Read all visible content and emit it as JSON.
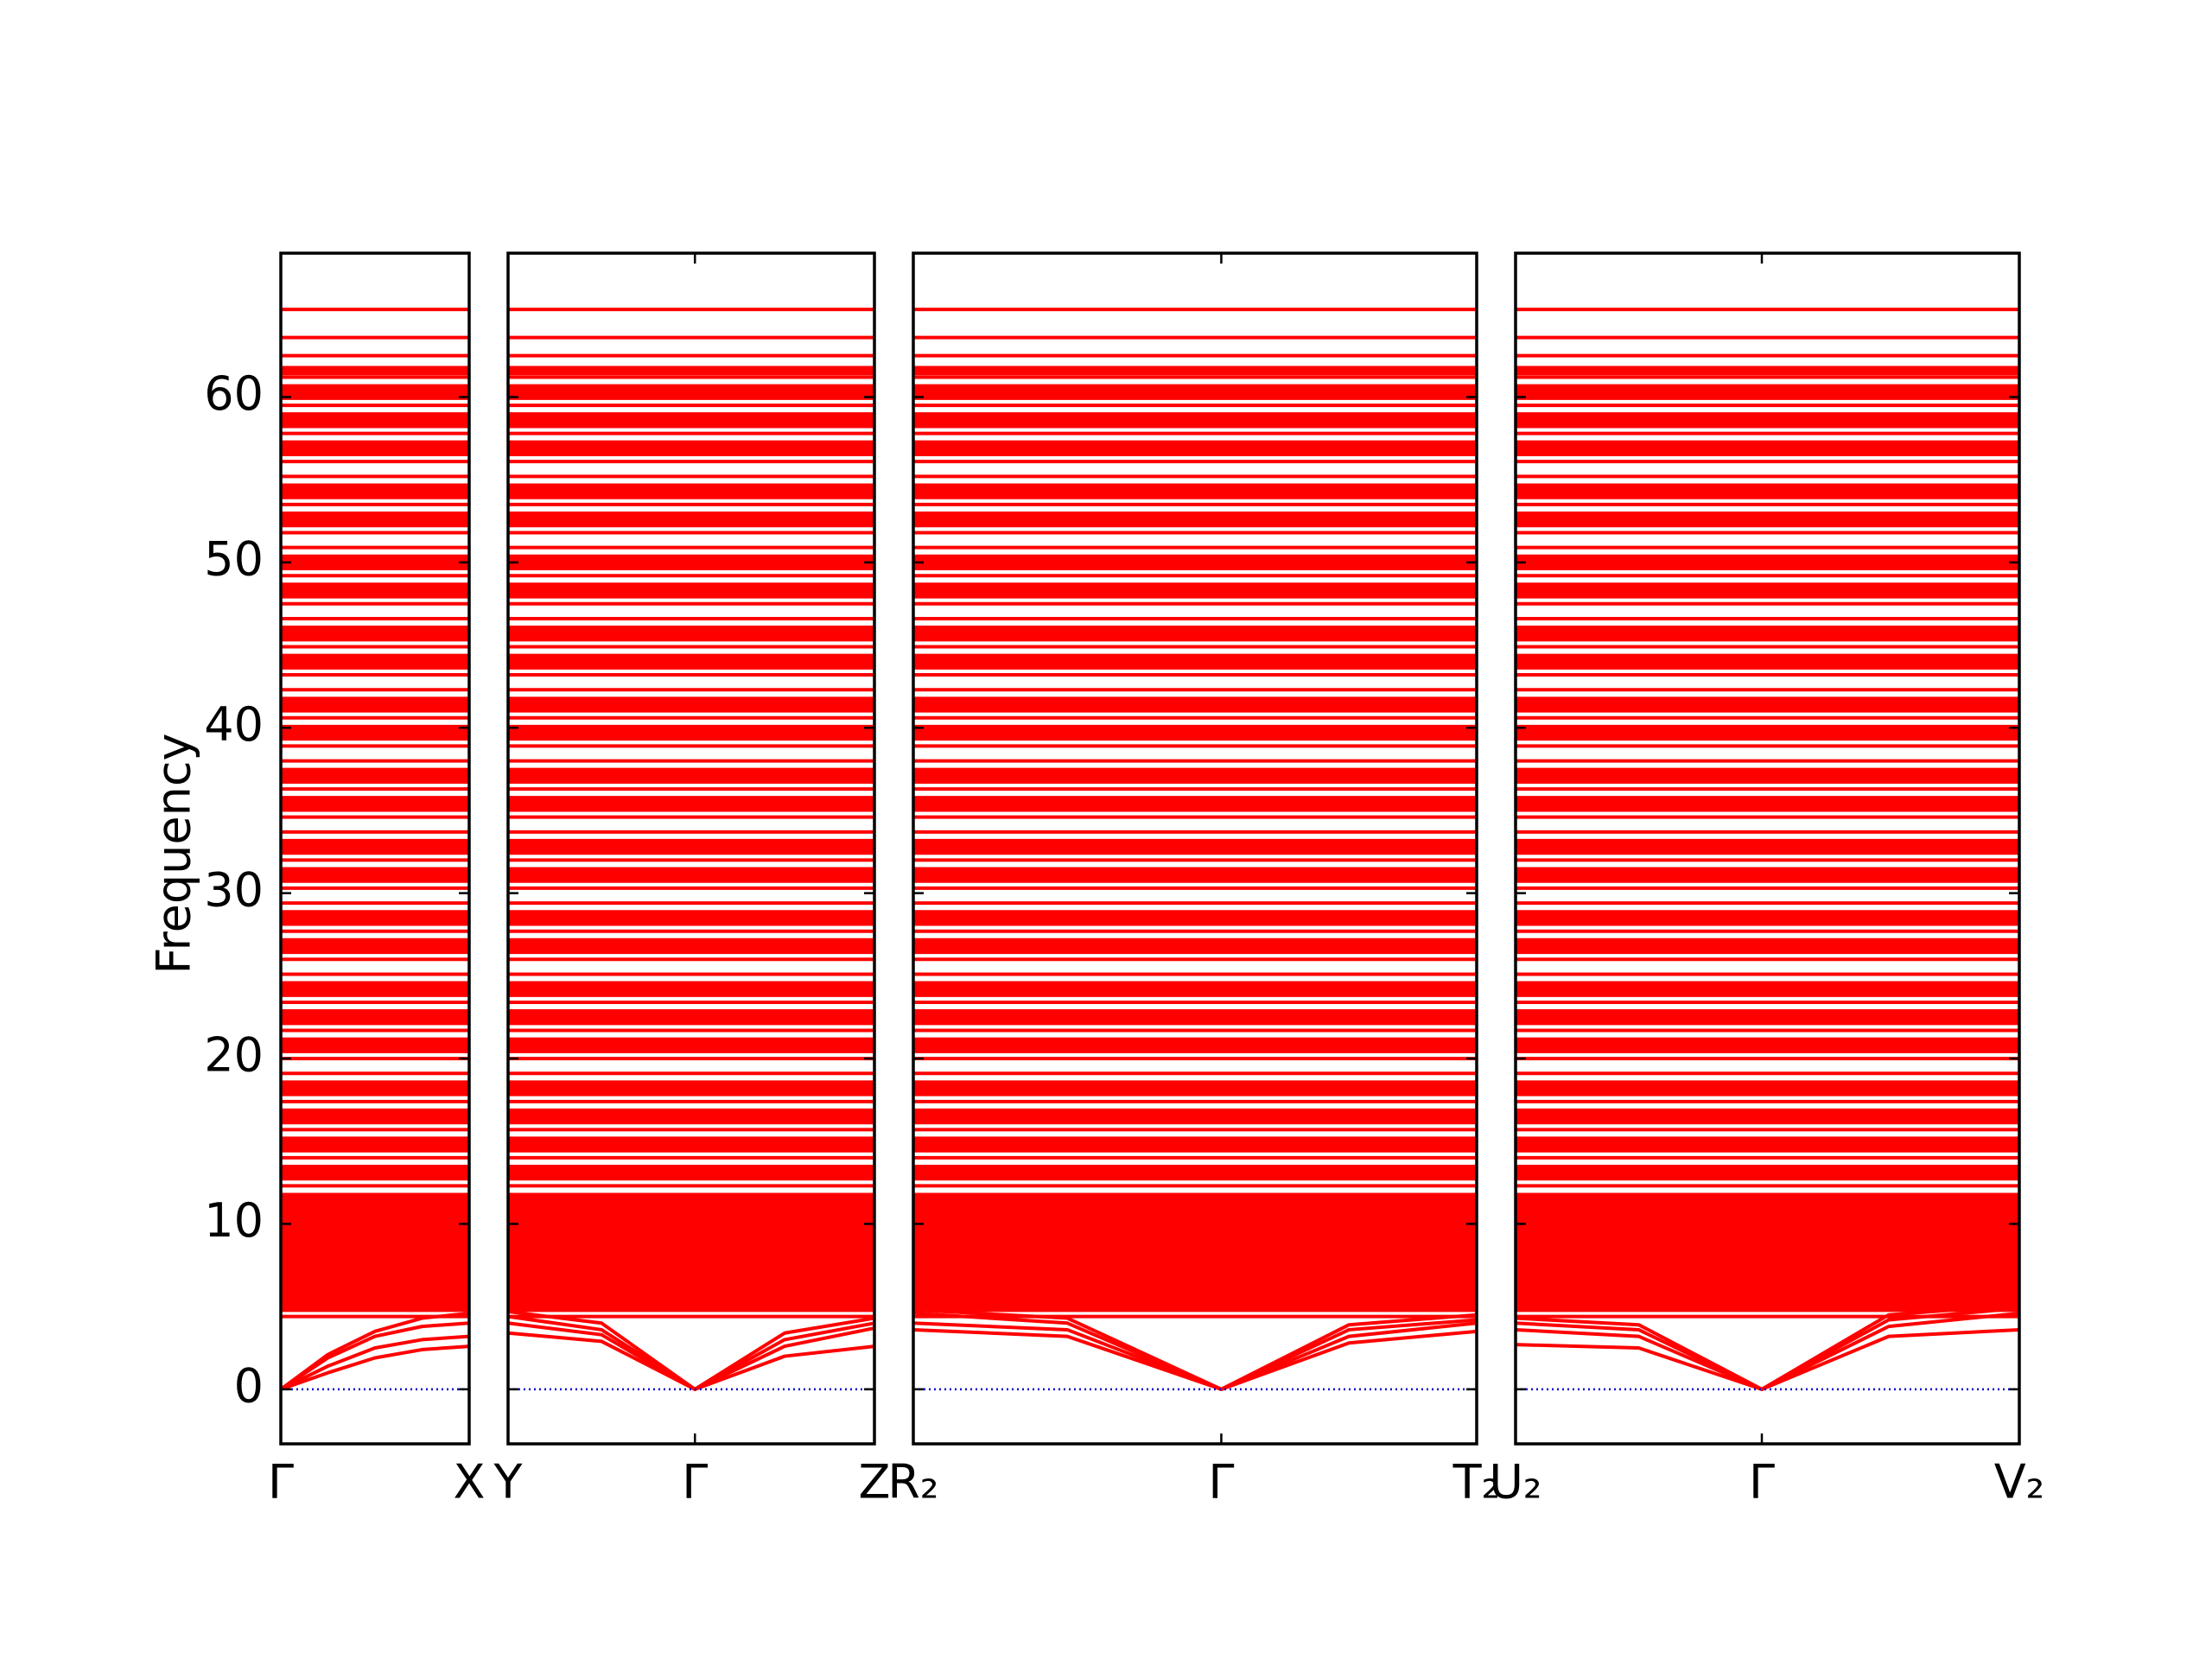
{
  "chart_data": {
    "type": "band_structure",
    "ylabel": "Frequency",
    "ylim": [
      -3.3,
      68.7
    ],
    "yticks": [
      0,
      10,
      20,
      30,
      40,
      50,
      60
    ],
    "color": "#ff0000",
    "zero_line": 0,
    "zero_color": "#0000cc",
    "flat_bands": [
      4.4,
      5.1,
      5.6,
      6.2,
      6.9,
      7.5,
      8.3,
      9.0,
      9.8,
      10.6,
      11.4,
      12.3,
      13.1,
      14.0,
      14.8,
      15.7,
      16.5,
      17.4,
      18.2,
      19.1,
      20.0,
      20.8,
      21.7,
      22.5,
      23.4,
      24.2,
      25.1,
      26.0,
      26.8,
      27.7,
      28.5,
      29.4,
      30.3,
      31.1,
      32.0,
      32.8,
      33.7,
      34.6,
      35.4,
      36.3,
      37.1,
      38.0,
      38.9,
      39.7,
      40.6,
      41.4,
      42.3,
      43.2,
      44.0,
      44.9,
      45.7,
      46.6,
      47.5,
      48.3,
      49.2,
      50.0,
      50.9,
      51.8,
      52.6,
      53.5,
      54.3,
      55.2,
      56.1,
      56.9,
      57.8,
      58.6,
      59.5,
      60.3,
      61.2,
      61.6,
      62.5,
      63.6,
      65.3
    ],
    "panels": [
      {
        "xlim": [
          0,
          0.5
        ],
        "xticks": [
          {
            "value": 0,
            "label": "Γ"
          },
          {
            "value": 0.5,
            "label": "X"
          }
        ],
        "x": [
          0,
          0.125,
          0.25,
          0.375,
          0.5
        ],
        "bands": [
          [
            0,
            1.0,
            1.9,
            2.4,
            2.6
          ],
          [
            0,
            1.4,
            2.5,
            3.0,
            3.2
          ],
          [
            0,
            1.9,
            3.2,
            3.8,
            4.0
          ],
          [
            0,
            2.1,
            3.5,
            4.3,
            4.6
          ]
        ]
      },
      {
        "xlim": [
          0,
          1.0
        ],
        "xticks": [
          {
            "value": 0,
            "label": "Y"
          },
          {
            "value": 0.51,
            "label": "Γ"
          },
          {
            "value": 1.0,
            "label": "Z"
          }
        ],
        "x": [
          0,
          0.255,
          0.51,
          0.755,
          1.0
        ],
        "bands": [
          [
            3.4,
            2.9,
            0,
            2.0,
            2.6
          ],
          [
            4.0,
            3.3,
            0,
            2.6,
            3.7
          ],
          [
            4.4,
            3.6,
            0,
            3.0,
            4.0
          ],
          [
            4.7,
            4.0,
            0,
            3.4,
            4.3
          ]
        ]
      },
      {
        "xlim": [
          0,
          1.5
        ],
        "xticks": [
          {
            "value": 0,
            "label": "R₂"
          },
          {
            "value": 0.82,
            "label": "Γ"
          },
          {
            "value": 1.5,
            "label": "T₂"
          }
        ],
        "x": [
          0,
          0.41,
          0.82,
          1.16,
          1.5
        ],
        "bands": [
          [
            3.6,
            3.2,
            0,
            2.8,
            3.5
          ],
          [
            4.0,
            3.6,
            0,
            3.2,
            4.0
          ],
          [
            4.6,
            4.0,
            0,
            3.6,
            4.2
          ],
          [
            4.8,
            4.3,
            0,
            3.9,
            4.5
          ]
        ]
      },
      {
        "xlim": [
          0,
          1.35
        ],
        "xticks": [
          {
            "value": 0,
            "label": "U₂"
          },
          {
            "value": 0.66,
            "label": "Γ"
          },
          {
            "value": 1.35,
            "label": "V₂"
          }
        ],
        "x": [
          0,
          0.33,
          0.66,
          1.0,
          1.35
        ],
        "bands": [
          [
            2.7,
            2.5,
            0,
            3.2,
            3.6
          ],
          [
            3.6,
            3.2,
            0,
            3.8,
            4.6
          ],
          [
            4.0,
            3.6,
            0,
            4.2,
            4.9
          ],
          [
            4.3,
            3.9,
            0,
            4.5,
            5.1
          ]
        ]
      }
    ]
  }
}
